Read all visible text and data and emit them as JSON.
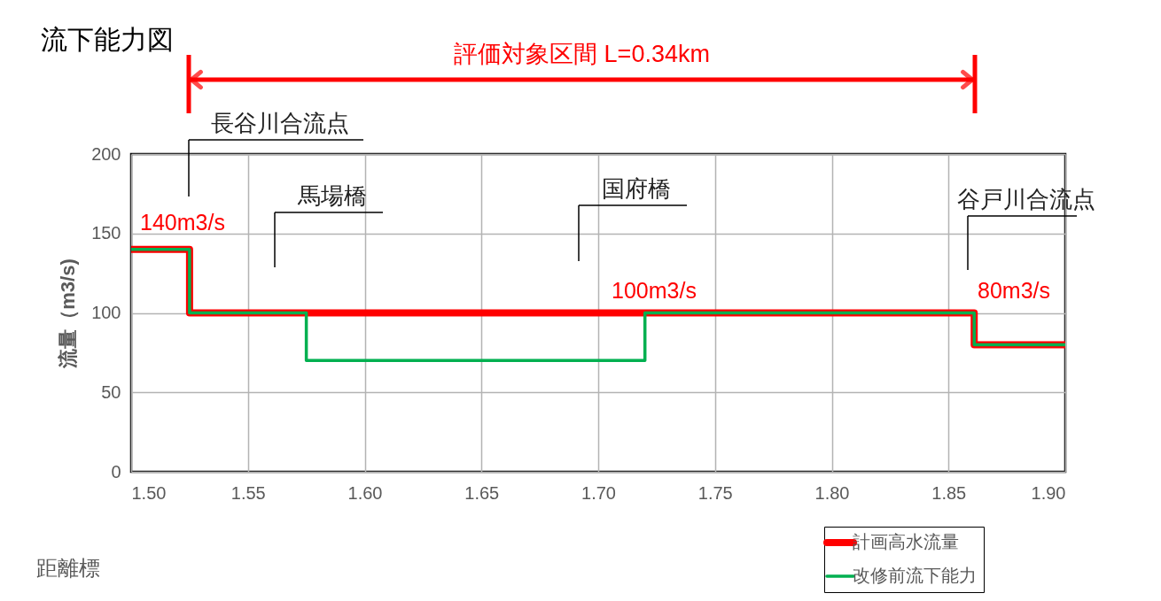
{
  "chart_data": {
    "type": "step",
    "title": "流下能力図",
    "xlabel": "距離標",
    "ylabel": "流量（m3/s)",
    "xlim": [
      1.5,
      1.9
    ],
    "xticks": [
      {
        "value": 1.5,
        "label": "1.50"
      },
      {
        "value": 1.55,
        "label": "1.55"
      },
      {
        "value": 1.6,
        "label": "1.60"
      },
      {
        "value": 1.65,
        "label": "1.65"
      },
      {
        "value": 1.7,
        "label": "1.70"
      },
      {
        "value": 1.75,
        "label": "1.75"
      },
      {
        "value": 1.8,
        "label": "1.80"
      },
      {
        "value": 1.85,
        "label": "1.85"
      },
      {
        "value": 1.9,
        "label": "1.90"
      }
    ],
    "ylim": [
      0,
      200
    ],
    "yticks": [
      0,
      50,
      100,
      150,
      200
    ],
    "grid": true,
    "legend": "bottom right",
    "series": [
      {
        "name": "計画高水流量",
        "color": "#ff0000",
        "x": [
          1.5,
          1.525,
          1.861,
          1.9
        ],
        "values": [
          140,
          100,
          80,
          80
        ]
      },
      {
        "name": "改修前流下能力",
        "color": "#00b050",
        "x": [
          1.5,
          1.525,
          1.575,
          1.72,
          1.861,
          1.9
        ],
        "values": [
          140,
          100,
          70,
          100,
          80,
          80
        ]
      }
    ],
    "annotations": [
      "評価対象区間 L=0.34km",
      "長谷川合流点",
      "140m3/s",
      "馬場橋",
      "国府橋",
      "100m3/s",
      "谷戸川合流点",
      "80m3/s"
    ]
  }
}
